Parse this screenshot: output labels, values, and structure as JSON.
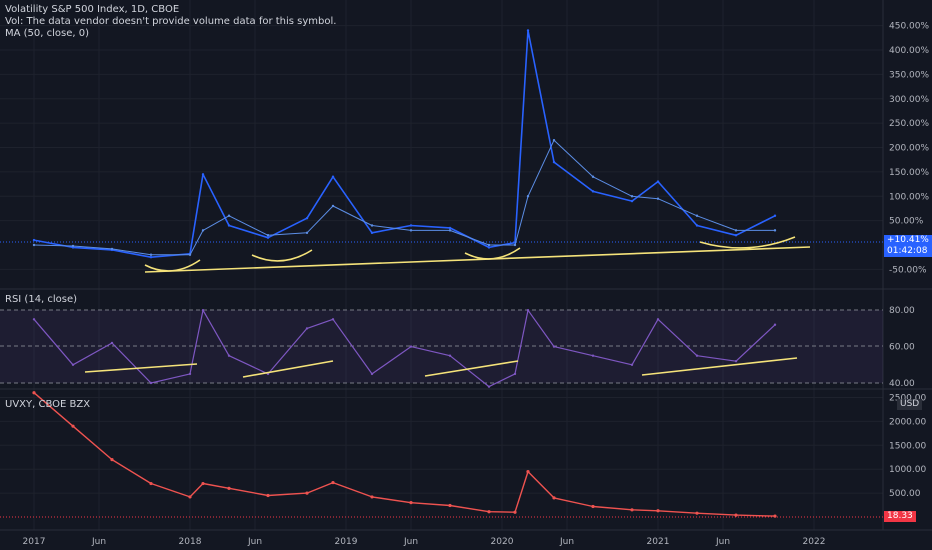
{
  "theme": {
    "background": "#131722",
    "grid": "#1e222d",
    "text": "#b2b5be",
    "vix_line": "#2962ff",
    "ma_line": "#5c8ee6",
    "rsi_line": "#7e57c2",
    "rsi_band": "#2a2340",
    "annotation": "#f5e37a",
    "uvxy_up": "#26a69a",
    "uvxy_down": "#ef5350",
    "last_value_red": "#f23645"
  },
  "main_pane": {
    "legend": [
      "Volatility S&P 500 Index, 1D, CBOE",
      "Vol: The data vendor doesn't provide volume data for this symbol.",
      "MA (50, close, 0)"
    ],
    "axis_ticks": [
      "450.00%",
      "400.00%",
      "350.00%",
      "300.00%",
      "250.00%",
      "200.00%",
      "150.00%",
      "100.00%",
      "50.00%",
      "-50.00%"
    ],
    "last_change": "+10.41%",
    "countdown": "01:42:08"
  },
  "rsi_pane": {
    "legend": "RSI (14, close)",
    "axis_ticks": [
      "80.00",
      "60.00",
      "40.00"
    ]
  },
  "uvxy_pane": {
    "legend": "UVXY, CBOE BZX",
    "axis_ticks": [
      "2500.00",
      "2000.00",
      "1500.00",
      "1000.00",
      "500.00"
    ],
    "currency": "USD",
    "last_price": "18.33"
  },
  "time_axis": [
    "2017",
    "Jun",
    "2018",
    "Jun",
    "2019",
    "Jun",
    "2020",
    "Jun",
    "2021",
    "Jun",
    "2022"
  ],
  "chart_data": {
    "type": "line",
    "x": [
      "2017-01",
      "2017-04",
      "2017-07",
      "2017-10",
      "2018-01",
      "2018-02",
      "2018-04",
      "2018-07",
      "2018-10",
      "2018-12",
      "2019-03",
      "2019-06",
      "2019-09",
      "2019-12",
      "2020-02",
      "2020-03",
      "2020-05",
      "2020-08",
      "2020-11",
      "2021-01",
      "2021-04",
      "2021-07",
      "2021-10"
    ],
    "series": [
      {
        "name": "Volatility S&P 500 Index",
        "values": [
          10,
          -5,
          -10,
          -25,
          -18,
          145,
          40,
          15,
          55,
          140,
          25,
          40,
          35,
          -5,
          5,
          440,
          170,
          110,
          90,
          130,
          40,
          20,
          60
        ]
      },
      {
        "name": "MA (50, close, 0)",
        "values": [
          0,
          -2,
          -8,
          -20,
          -20,
          30,
          60,
          20,
          25,
          80,
          40,
          30,
          30,
          0,
          0,
          100,
          215,
          140,
          100,
          95,
          60,
          30,
          30
        ]
      },
      {
        "name": "RSI (14, close)",
        "values": [
          75,
          50,
          62,
          40,
          45,
          80,
          55,
          45,
          70,
          75,
          45,
          60,
          55,
          38,
          45,
          80,
          60,
          55,
          50,
          75,
          55,
          52,
          72
        ]
      },
      {
        "name": "UVXY, CBOE BZX",
        "values": [
          2600,
          1900,
          1200,
          700,
          420,
          700,
          600,
          450,
          500,
          720,
          420,
          300,
          240,
          110,
          100,
          950,
          400,
          220,
          150,
          130,
          80,
          40,
          18.33
        ]
      }
    ]
  }
}
